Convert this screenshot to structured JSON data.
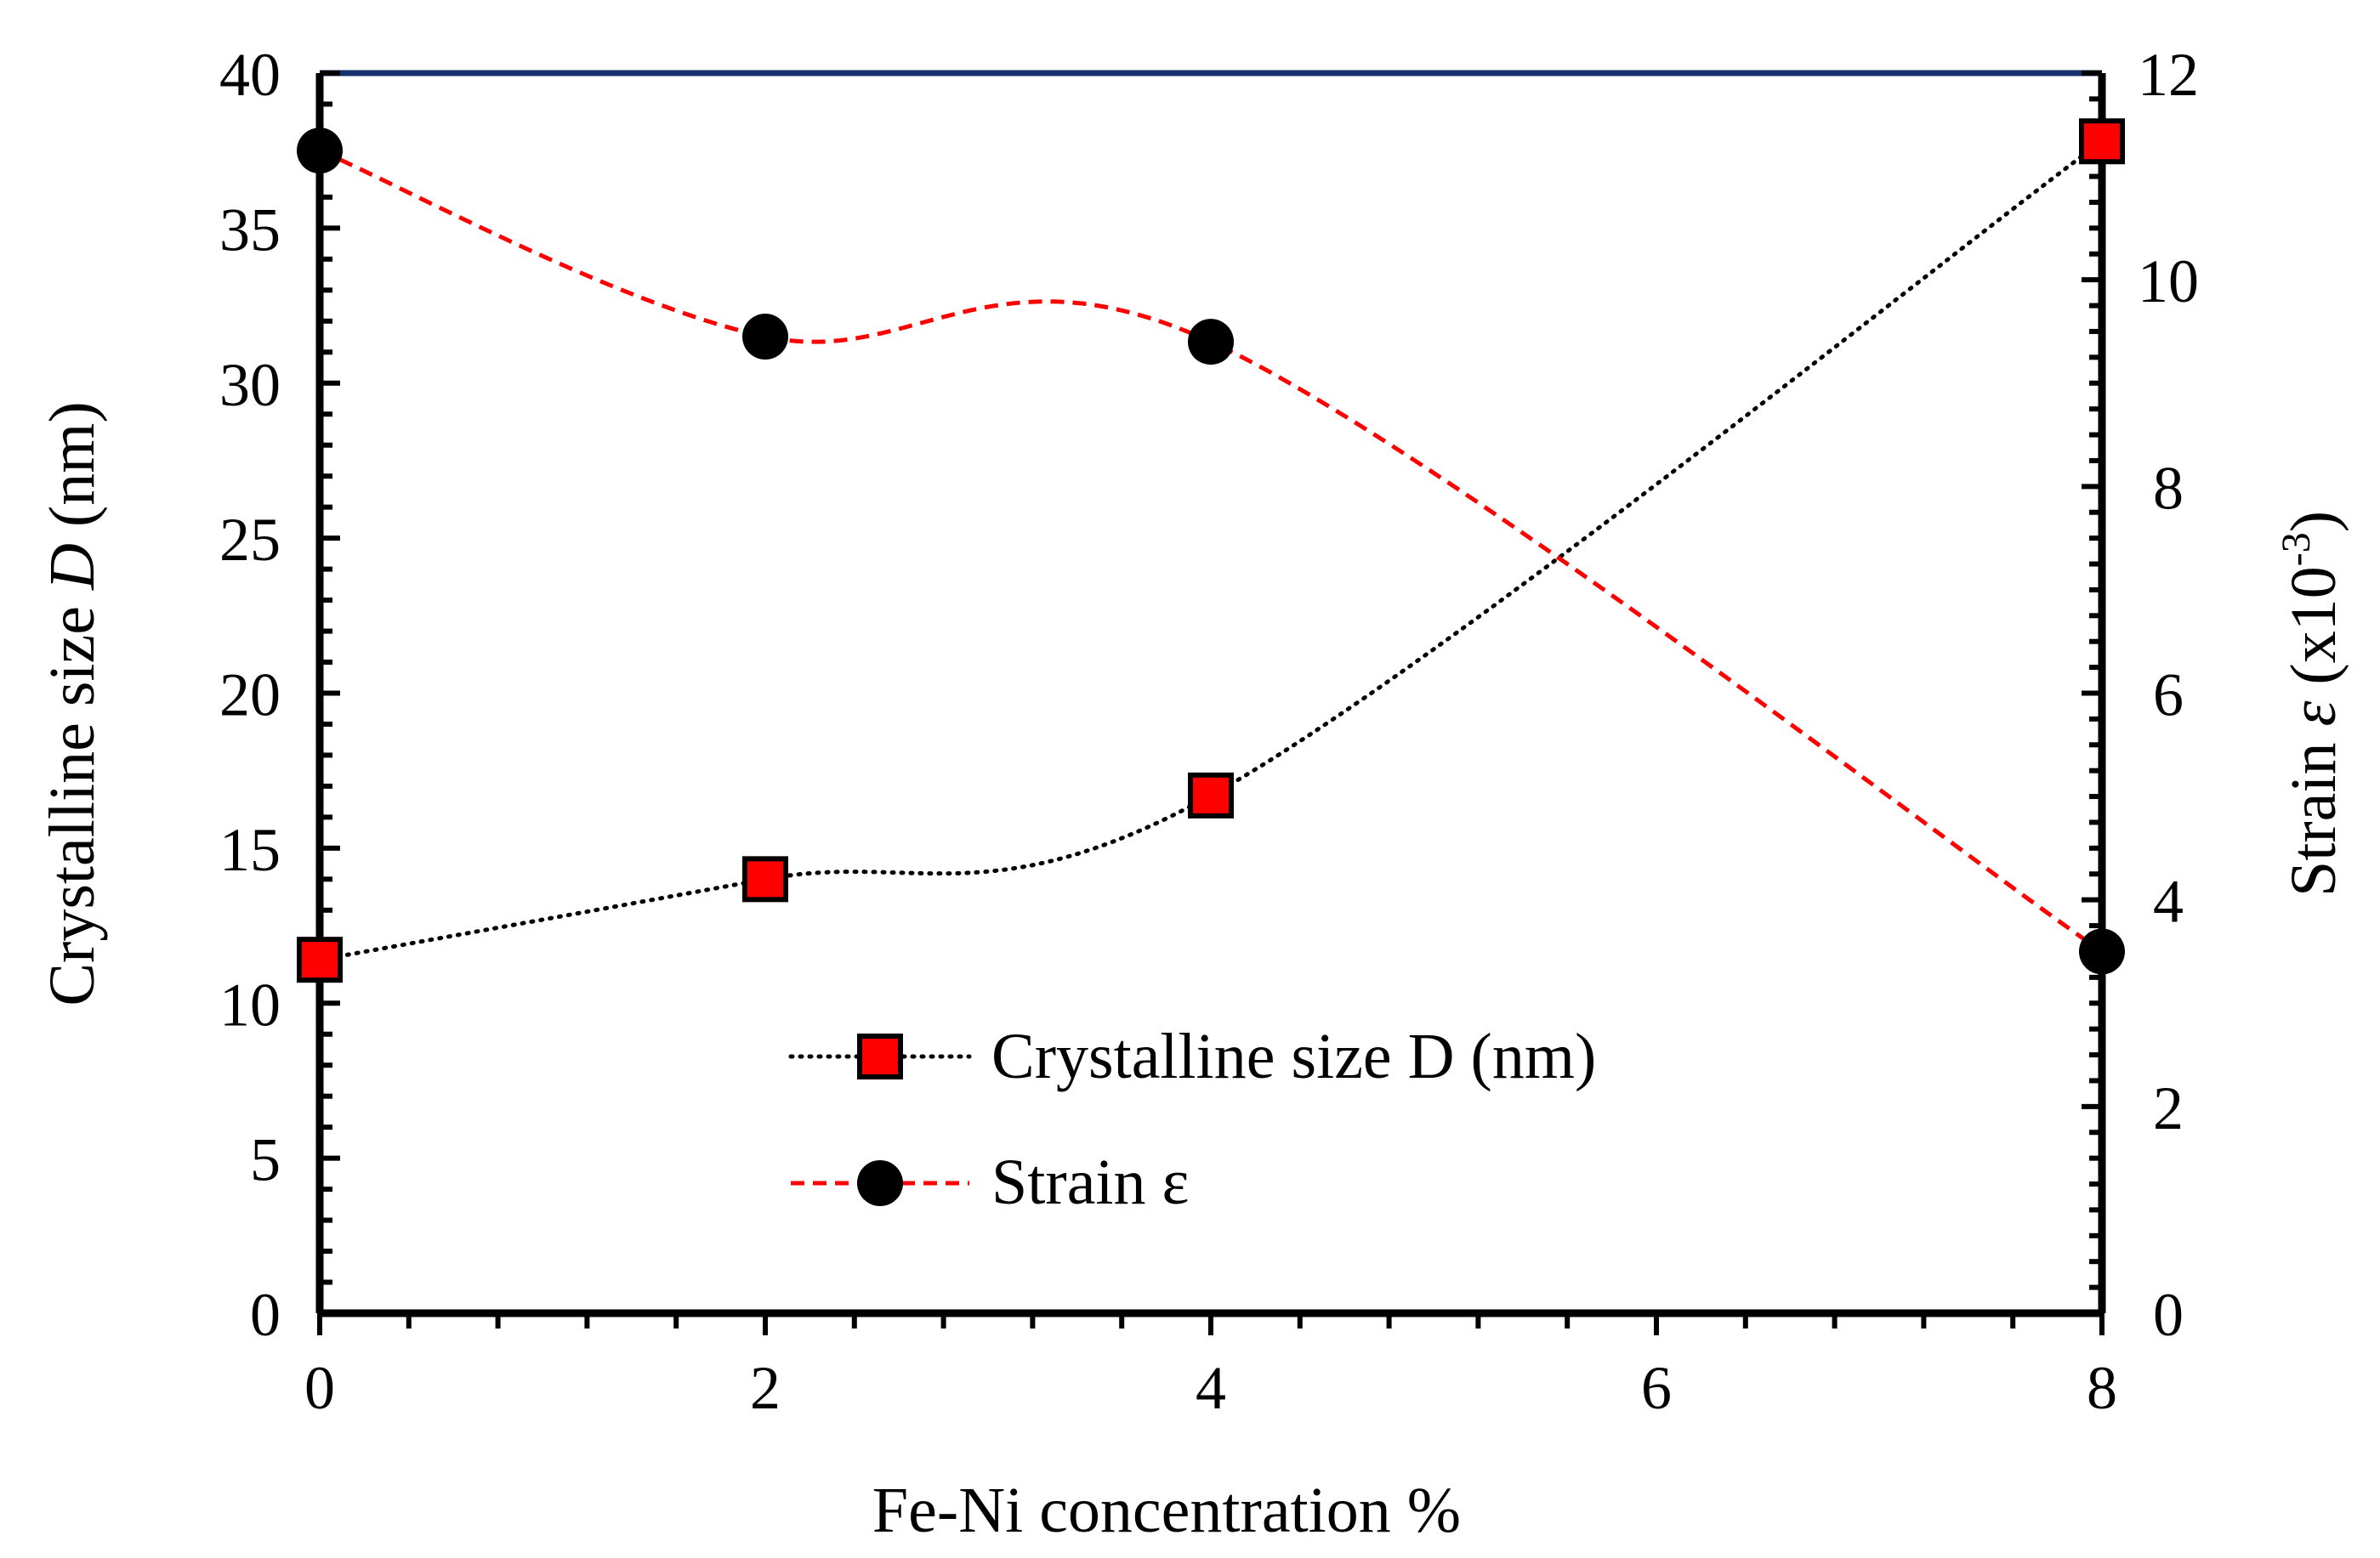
{
  "chart_data": {
    "type": "line",
    "title": "",
    "xlabel": "Fe-Ni concentration %",
    "ylabel": {
      "prefix": "Crystalline size ",
      "italic": "D",
      "suffix": " (nm)"
    },
    "y2label": {
      "prefix": "Strain ",
      "italic": "ε",
      "suffix": " (x10",
      "sup": "-3",
      "close": ")"
    },
    "xlim": [
      0,
      8
    ],
    "ylim": [
      0,
      40
    ],
    "y2lim": [
      0,
      12
    ],
    "xticks": [
      "0",
      "2",
      "4",
      "6",
      "8"
    ],
    "yticks": [
      "0",
      "5",
      "10",
      "15",
      "20",
      "25",
      "30",
      "35",
      "40"
    ],
    "y2ticks": [
      "0",
      "2",
      "4",
      "6",
      "8",
      "10",
      "12"
    ],
    "x": [
      0,
      2,
      4,
      8
    ],
    "series": [
      {
        "name": "Crystalline size D (nm)",
        "axis": "left",
        "marker": "square",
        "line": "dotted",
        "line_color": "#000000",
        "marker_color": "#ff0000",
        "values": [
          11.4,
          14.0,
          16.7,
          37.8
        ]
      },
      {
        "name": "Strain ε",
        "axis": "right",
        "marker": "circle",
        "line": "dashed",
        "line_color": "#ff0000",
        "marker_color": "#000000",
        "values": [
          11.25,
          9.45,
          9.4,
          3.5
        ]
      }
    ],
    "legend_position": "bottom-center",
    "top_frame_color": "#17306b"
  }
}
